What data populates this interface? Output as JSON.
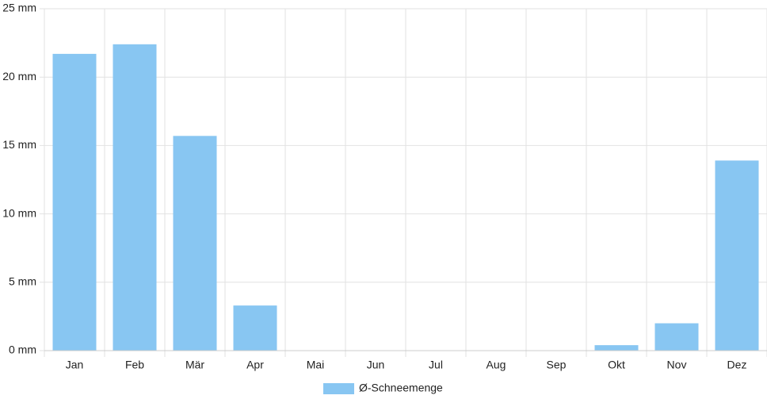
{
  "chart_data": {
    "type": "bar",
    "categories": [
      "Jan",
      "Feb",
      "Mär",
      "Apr",
      "Mai",
      "Jun",
      "Jul",
      "Aug",
      "Sep",
      "Okt",
      "Nov",
      "Dez"
    ],
    "series": [
      {
        "name": "Ø-Schneemenge",
        "color": "#88c6f2",
        "values": [
          21.7,
          22.4,
          15.7,
          3.3,
          0,
          0,
          0,
          0,
          0,
          0.4,
          2.0,
          13.9
        ]
      }
    ],
    "ylim": [
      0,
      25
    ],
    "yticks": [
      {
        "value": 0,
        "label": "0 mm"
      },
      {
        "value": 5,
        "label": "5 mm"
      },
      {
        "value": 10,
        "label": "10 mm"
      },
      {
        "value": 15,
        "label": "15 mm"
      },
      {
        "value": 20,
        "label": "20 mm"
      },
      {
        "value": 25,
        "label": "25 mm"
      }
    ],
    "grid": true,
    "legend": "bottom"
  }
}
